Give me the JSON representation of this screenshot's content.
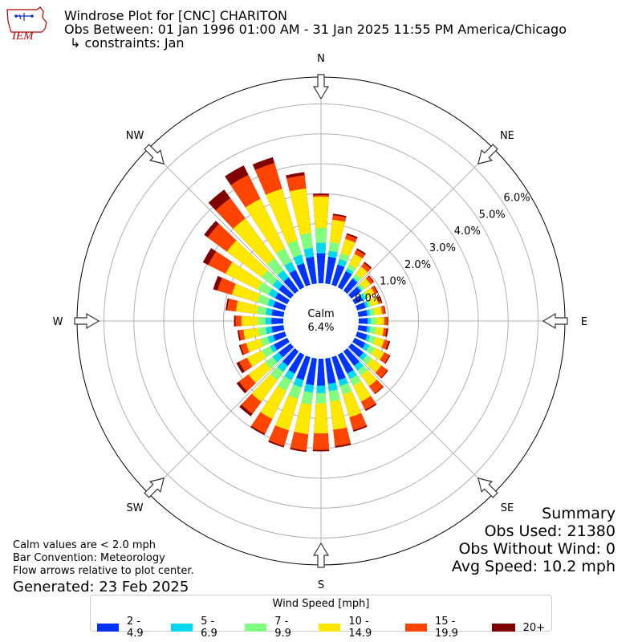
{
  "header": {
    "logo_text": "IEM",
    "title": "Windrose Plot for [CNC] CHARITON",
    "subtitle": "Obs Between: 01 Jan 1996 01:00 AM - 31 Jan 2025 11:55 PM America/Chicago",
    "constraints": "↳ constraints: Jan"
  },
  "summary": {
    "title": "Summary",
    "obs_used": "Obs Used: 21380",
    "obs_without_wind": "Obs Without Wind: 0",
    "avg_speed": "Avg Speed: 10.2 mph"
  },
  "notes": {
    "calm": "Calm values are < 2.0 mph",
    "convention": "Bar Convention: Meteorology",
    "arrows": "Flow arrows relative to plot center.",
    "generated": "Generated: 23 Feb 2025"
  },
  "legend": {
    "title": "Wind Speed [mph]"
  },
  "chart_data": {
    "type": "windrose",
    "calm_label": "Calm",
    "calm_percent": "6.4%",
    "radial_ticks": [
      "0.0%",
      "1.0%",
      "2.0%",
      "3.0%",
      "4.0%",
      "5.0%",
      "6.0%"
    ],
    "radial_tick_values": [
      0,
      1,
      2,
      3,
      4,
      5,
      6
    ],
    "rmax": 6.9,
    "grid": true,
    "compass_labels": [
      {
        "label": "N",
        "deg": 0
      },
      {
        "label": "NE",
        "deg": 45
      },
      {
        "label": "E",
        "deg": 90
      },
      {
        "label": "SE",
        "deg": 135
      },
      {
        "label": "S",
        "deg": 180
      },
      {
        "label": "SW",
        "deg": 225
      },
      {
        "label": "W",
        "deg": 270
      },
      {
        "label": "NW",
        "deg": 315
      }
    ],
    "direction_bin_deg": 10,
    "directions_deg": [
      0,
      10,
      20,
      30,
      40,
      50,
      60,
      70,
      80,
      90,
      100,
      110,
      120,
      130,
      140,
      150,
      160,
      170,
      180,
      190,
      200,
      210,
      220,
      230,
      240,
      250,
      260,
      270,
      280,
      290,
      300,
      310,
      320,
      330,
      340,
      350
    ],
    "series": [
      {
        "name": "2 - 4.9",
        "color": "#0033ff",
        "values": [
          1.0,
          0.9,
          0.7,
          0.6,
          0.5,
          0.4,
          0.3,
          0.3,
          0.3,
          0.3,
          0.3,
          0.35,
          0.4,
          0.5,
          0.6,
          0.7,
          0.8,
          0.85,
          0.9,
          0.9,
          0.8,
          0.7,
          0.6,
          0.5,
          0.5,
          0.4,
          0.4,
          0.4,
          0.4,
          0.4,
          0.45,
          0.5,
          0.55,
          0.65,
          0.75,
          0.9
        ]
      },
      {
        "name": "5 - 6.9",
        "color": "#00d8f0",
        "values": [
          1.35,
          1.1,
          0.9,
          0.7,
          0.55,
          0.45,
          0.4,
          0.4,
          0.4,
          0.4,
          0.4,
          0.45,
          0.55,
          0.65,
          0.8,
          0.9,
          1.0,
          1.1,
          1.15,
          1.15,
          1.05,
          0.95,
          0.85,
          0.75,
          0.65,
          0.6,
          0.6,
          0.6,
          0.6,
          0.6,
          0.7,
          0.75,
          0.85,
          0.95,
          1.05,
          1.2
        ]
      },
      {
        "name": "7 - 9.9",
        "color": "#80ff80",
        "values": [
          1.85,
          1.4,
          1.1,
          0.85,
          0.7,
          0.55,
          0.5,
          0.5,
          0.55,
          0.6,
          0.6,
          0.65,
          0.75,
          0.85,
          1.0,
          1.15,
          1.3,
          1.45,
          1.5,
          1.55,
          1.45,
          1.35,
          1.2,
          1.05,
          0.95,
          0.85,
          0.85,
          0.85,
          0.9,
          0.95,
          1.1,
          1.2,
          1.35,
          1.45,
          1.55,
          1.7
        ]
      },
      {
        "name": "10 - 14.9",
        "color": "#ffe800",
        "values": [
          2.9,
          2.15,
          1.6,
          1.25,
          1.0,
          0.8,
          0.75,
          0.75,
          0.8,
          0.85,
          0.85,
          0.95,
          1.1,
          1.25,
          1.45,
          1.75,
          2.1,
          2.4,
          2.5,
          2.55,
          2.55,
          2.4,
          2.1,
          1.75,
          1.5,
          1.35,
          1.35,
          1.4,
          1.6,
          1.85,
          2.3,
          2.65,
          3.0,
          3.3,
          3.35,
          3.2
        ]
      },
      {
        "name": "15 - 19.9",
        "color": "#ff4400",
        "values": [
          2.95,
          2.3,
          1.75,
          1.4,
          1.15,
          0.92,
          0.85,
          0.85,
          0.9,
          0.95,
          0.95,
          1.1,
          1.3,
          1.5,
          1.75,
          2.05,
          2.55,
          2.95,
          3.05,
          3.1,
          3.1,
          2.95,
          2.6,
          2.15,
          1.8,
          1.55,
          1.5,
          1.6,
          1.9,
          2.35,
          2.95,
          3.45,
          3.85,
          4.2,
          4.25,
          3.65
        ]
      },
      {
        "name": "20+",
        "color": "#800000",
        "values": [
          3.0,
          2.35,
          1.8,
          1.45,
          1.2,
          0.95,
          0.88,
          0.88,
          0.92,
          0.98,
          1.0,
          1.15,
          1.33,
          1.53,
          1.78,
          2.1,
          2.6,
          3.0,
          3.1,
          3.15,
          3.15,
          3.0,
          2.7,
          2.25,
          1.9,
          1.6,
          1.55,
          1.65,
          1.95,
          2.5,
          3.15,
          3.6,
          4.2,
          4.55,
          4.45,
          3.75
        ]
      }
    ]
  }
}
